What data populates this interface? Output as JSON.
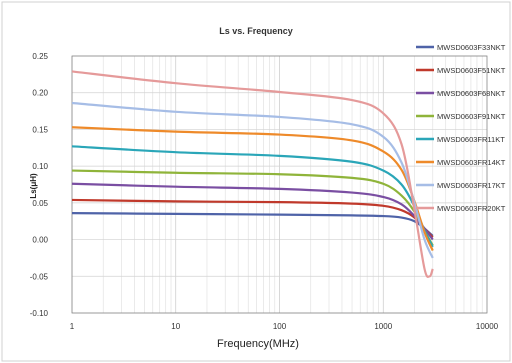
{
  "chart_data": {
    "type": "line",
    "title": "Ls vs. Frequency",
    "xlabel": "Frequency(MHz)",
    "ylabel": "Ls(μH)",
    "xscale": "log",
    "xlim": [
      1,
      10000
    ],
    "ylim": [
      -0.1,
      0.25
    ],
    "x_ticks": [
      1,
      10,
      100,
      1000,
      10000
    ],
    "x_tick_labels": [
      "1",
      "10",
      "100",
      "1000",
      "10000"
    ],
    "y_ticks": [
      -0.1,
      -0.05,
      0.0,
      0.05,
      0.1,
      0.15,
      0.2,
      0.25
    ],
    "y_tick_labels": [
      "-0.10",
      "-0.05",
      "0.00",
      "0.05",
      "0.10",
      "0.15",
      "0.20",
      "0.25"
    ],
    "grid": true,
    "legend_position": "right",
    "series": [
      {
        "name": "MWSD0603F33NKT",
        "color": "#4f63a8",
        "points": [
          [
            1,
            0.036
          ],
          [
            10,
            0.035
          ],
          [
            100,
            0.034
          ],
          [
            500,
            0.033
          ],
          [
            1000,
            0.032
          ],
          [
            1500,
            0.03
          ],
          [
            2000,
            0.025
          ],
          [
            2500,
            0.015
          ],
          [
            3000,
            0.005
          ]
        ]
      },
      {
        "name": "MWSD0603F51NKT",
        "color": "#c0392b",
        "points": [
          [
            1,
            0.054
          ],
          [
            10,
            0.052
          ],
          [
            100,
            0.051
          ],
          [
            500,
            0.049
          ],
          [
            1000,
            0.046
          ],
          [
            1500,
            0.04
          ],
          [
            2000,
            0.03
          ],
          [
            2500,
            0.015
          ],
          [
            3000,
            0.003
          ]
        ]
      },
      {
        "name": "MWSD0603F68NKT",
        "color": "#7a4ea2",
        "points": [
          [
            1,
            0.076
          ],
          [
            10,
            0.072
          ],
          [
            100,
            0.069
          ],
          [
            500,
            0.064
          ],
          [
            1000,
            0.058
          ],
          [
            1500,
            0.048
          ],
          [
            2000,
            0.032
          ],
          [
            2500,
            0.015
          ],
          [
            3000,
            0.0
          ]
        ]
      },
      {
        "name": "MWSD0603F91NKT",
        "color": "#8fb43a",
        "points": [
          [
            1,
            0.094
          ],
          [
            10,
            0.091
          ],
          [
            100,
            0.089
          ],
          [
            500,
            0.084
          ],
          [
            1000,
            0.076
          ],
          [
            1500,
            0.06
          ],
          [
            2000,
            0.038
          ],
          [
            2500,
            0.012
          ],
          [
            3000,
            -0.008
          ]
        ]
      },
      {
        "name": "MWSD0603FR11KT",
        "color": "#2aa6b8",
        "points": [
          [
            1,
            0.127
          ],
          [
            10,
            0.119
          ],
          [
            100,
            0.114
          ],
          [
            500,
            0.106
          ],
          [
            1000,
            0.094
          ],
          [
            1500,
            0.075
          ],
          [
            2000,
            0.045
          ],
          [
            2500,
            0.012
          ],
          [
            3000,
            -0.01
          ]
        ]
      },
      {
        "name": "MWSD0603FR14KT",
        "color": "#ee8a2a",
        "points": [
          [
            1,
            0.153
          ],
          [
            10,
            0.147
          ],
          [
            100,
            0.143
          ],
          [
            500,
            0.135
          ],
          [
            1000,
            0.12
          ],
          [
            1500,
            0.095
          ],
          [
            2000,
            0.052
          ],
          [
            2500,
            0.01
          ],
          [
            3000,
            -0.015
          ]
        ]
      },
      {
        "name": "MWSD0603FR17KT",
        "color": "#a6bde6",
        "points": [
          [
            1,
            0.186
          ],
          [
            10,
            0.174
          ],
          [
            100,
            0.167
          ],
          [
            500,
            0.157
          ],
          [
            1000,
            0.14
          ],
          [
            1500,
            0.105
          ],
          [
            2000,
            0.05
          ],
          [
            2500,
            0.0
          ],
          [
            3000,
            -0.025
          ]
        ]
      },
      {
        "name": "MWSD0603FR20KT",
        "color": "#e59a9a",
        "points": [
          [
            1,
            0.229
          ],
          [
            10,
            0.213
          ],
          [
            100,
            0.201
          ],
          [
            500,
            0.19
          ],
          [
            1000,
            0.172
          ],
          [
            1500,
            0.13
          ],
          [
            2000,
            0.04
          ],
          [
            2500,
            -0.04
          ],
          [
            2800,
            -0.05
          ],
          [
            3000,
            -0.04
          ]
        ]
      }
    ]
  }
}
